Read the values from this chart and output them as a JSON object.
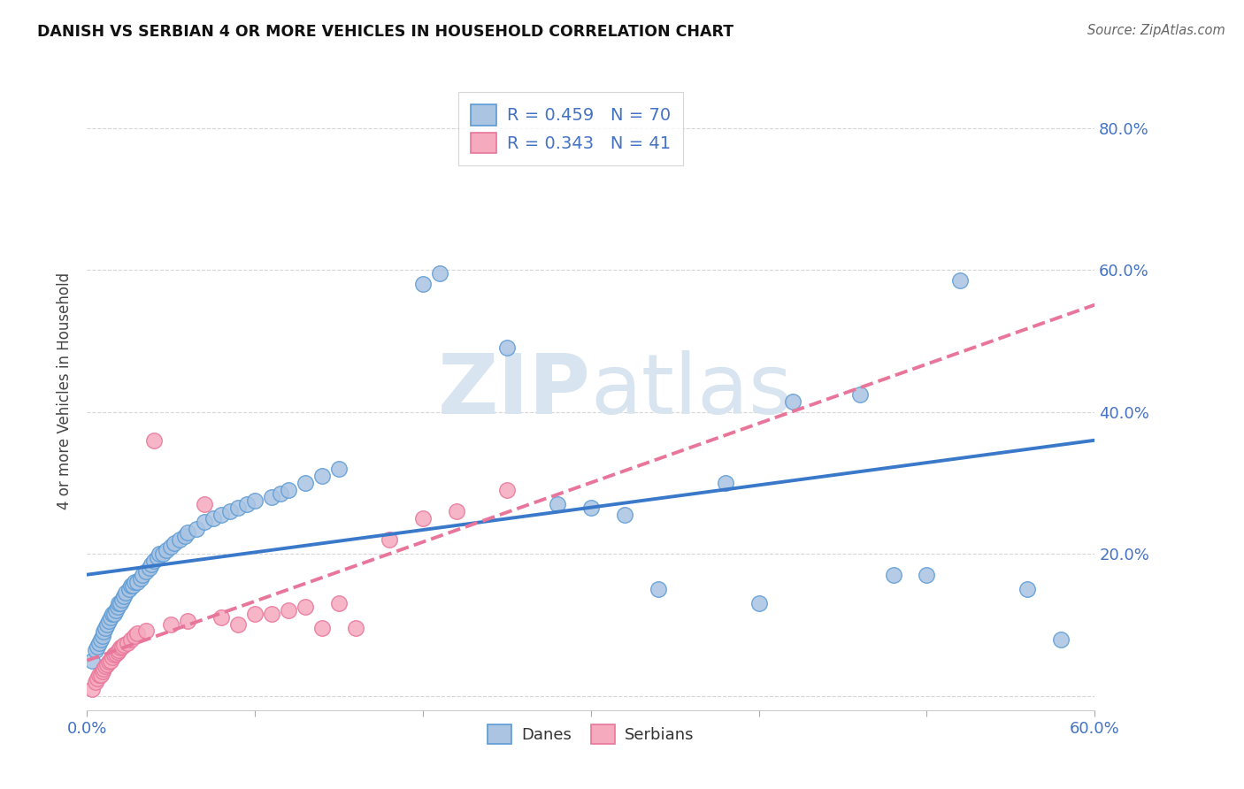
{
  "title": "DANISH VS SERBIAN 4 OR MORE VEHICLES IN HOUSEHOLD CORRELATION CHART",
  "source": "Source: ZipAtlas.com",
  "ylabel": "4 or more Vehicles in Household",
  "xlim": [
    0.0,
    0.6
  ],
  "ylim": [
    -0.02,
    0.88
  ],
  "xticks": [
    0.0,
    0.1,
    0.2,
    0.3,
    0.4,
    0.5,
    0.6
  ],
  "xtick_labels_shown": {
    "0.0": "0.0%",
    "0.6": "60.0%"
  },
  "yticks": [
    0.0,
    0.2,
    0.4,
    0.6,
    0.8
  ],
  "ytick_labels": [
    "",
    "20.0%",
    "40.0%",
    "60.0%",
    "80.0%"
  ],
  "danes_color": "#aac4e2",
  "serbians_color": "#f5aabe",
  "danes_edge_color": "#5b9bd5",
  "serbians_edge_color": "#e8759a",
  "danes_line_color": "#3a78c9",
  "serbians_line_color": "#e8759a",
  "tick_color": "#4472c4",
  "danes_R": 0.459,
  "danes_N": 70,
  "serbians_R": 0.343,
  "serbians_N": 41,
  "watermark_color": "#d8e4f0",
  "danes_x": [
    0.003,
    0.005,
    0.006,
    0.007,
    0.008,
    0.009,
    0.01,
    0.011,
    0.012,
    0.013,
    0.014,
    0.015,
    0.016,
    0.017,
    0.018,
    0.019,
    0.02,
    0.021,
    0.022,
    0.023,
    0.025,
    0.026,
    0.027,
    0.028,
    0.03,
    0.032,
    0.033,
    0.035,
    0.037,
    0.038,
    0.04,
    0.042,
    0.043,
    0.045,
    0.047,
    0.05,
    0.052,
    0.055,
    0.058,
    0.06,
    0.065,
    0.07,
    0.075,
    0.08,
    0.085,
    0.09,
    0.095,
    0.1,
    0.11,
    0.115,
    0.12,
    0.13,
    0.14,
    0.15,
    0.2,
    0.21,
    0.25,
    0.28,
    0.3,
    0.32,
    0.34,
    0.38,
    0.4,
    0.42,
    0.46,
    0.48,
    0.5,
    0.52,
    0.56,
    0.58
  ],
  "danes_y": [
    0.05,
    0.065,
    0.07,
    0.075,
    0.08,
    0.085,
    0.09,
    0.095,
    0.1,
    0.105,
    0.11,
    0.115,
    0.115,
    0.12,
    0.125,
    0.13,
    0.13,
    0.135,
    0.14,
    0.145,
    0.15,
    0.155,
    0.155,
    0.16,
    0.16,
    0.165,
    0.17,
    0.175,
    0.18,
    0.185,
    0.19,
    0.195,
    0.2,
    0.2,
    0.205,
    0.21,
    0.215,
    0.22,
    0.225,
    0.23,
    0.235,
    0.245,
    0.25,
    0.255,
    0.26,
    0.265,
    0.27,
    0.275,
    0.28,
    0.285,
    0.29,
    0.3,
    0.31,
    0.32,
    0.58,
    0.595,
    0.49,
    0.27,
    0.265,
    0.255,
    0.15,
    0.3,
    0.13,
    0.415,
    0.425,
    0.17,
    0.17,
    0.585,
    0.15,
    0.08
  ],
  "serbians_x": [
    0.003,
    0.005,
    0.006,
    0.007,
    0.008,
    0.009,
    0.01,
    0.011,
    0.012,
    0.013,
    0.014,
    0.015,
    0.016,
    0.017,
    0.018,
    0.019,
    0.02,
    0.021,
    0.022,
    0.024,
    0.026,
    0.028,
    0.03,
    0.035,
    0.04,
    0.05,
    0.06,
    0.07,
    0.08,
    0.09,
    0.1,
    0.11,
    0.12,
    0.13,
    0.14,
    0.15,
    0.16,
    0.18,
    0.2,
    0.22,
    0.25
  ],
  "serbians_y": [
    0.01,
    0.02,
    0.025,
    0.03,
    0.03,
    0.035,
    0.038,
    0.042,
    0.045,
    0.048,
    0.05,
    0.055,
    0.058,
    0.06,
    0.062,
    0.065,
    0.068,
    0.07,
    0.072,
    0.075,
    0.08,
    0.085,
    0.088,
    0.092,
    0.36,
    0.1,
    0.105,
    0.27,
    0.11,
    0.1,
    0.115,
    0.115,
    0.12,
    0.125,
    0.095,
    0.13,
    0.095,
    0.22,
    0.25,
    0.26,
    0.29
  ]
}
